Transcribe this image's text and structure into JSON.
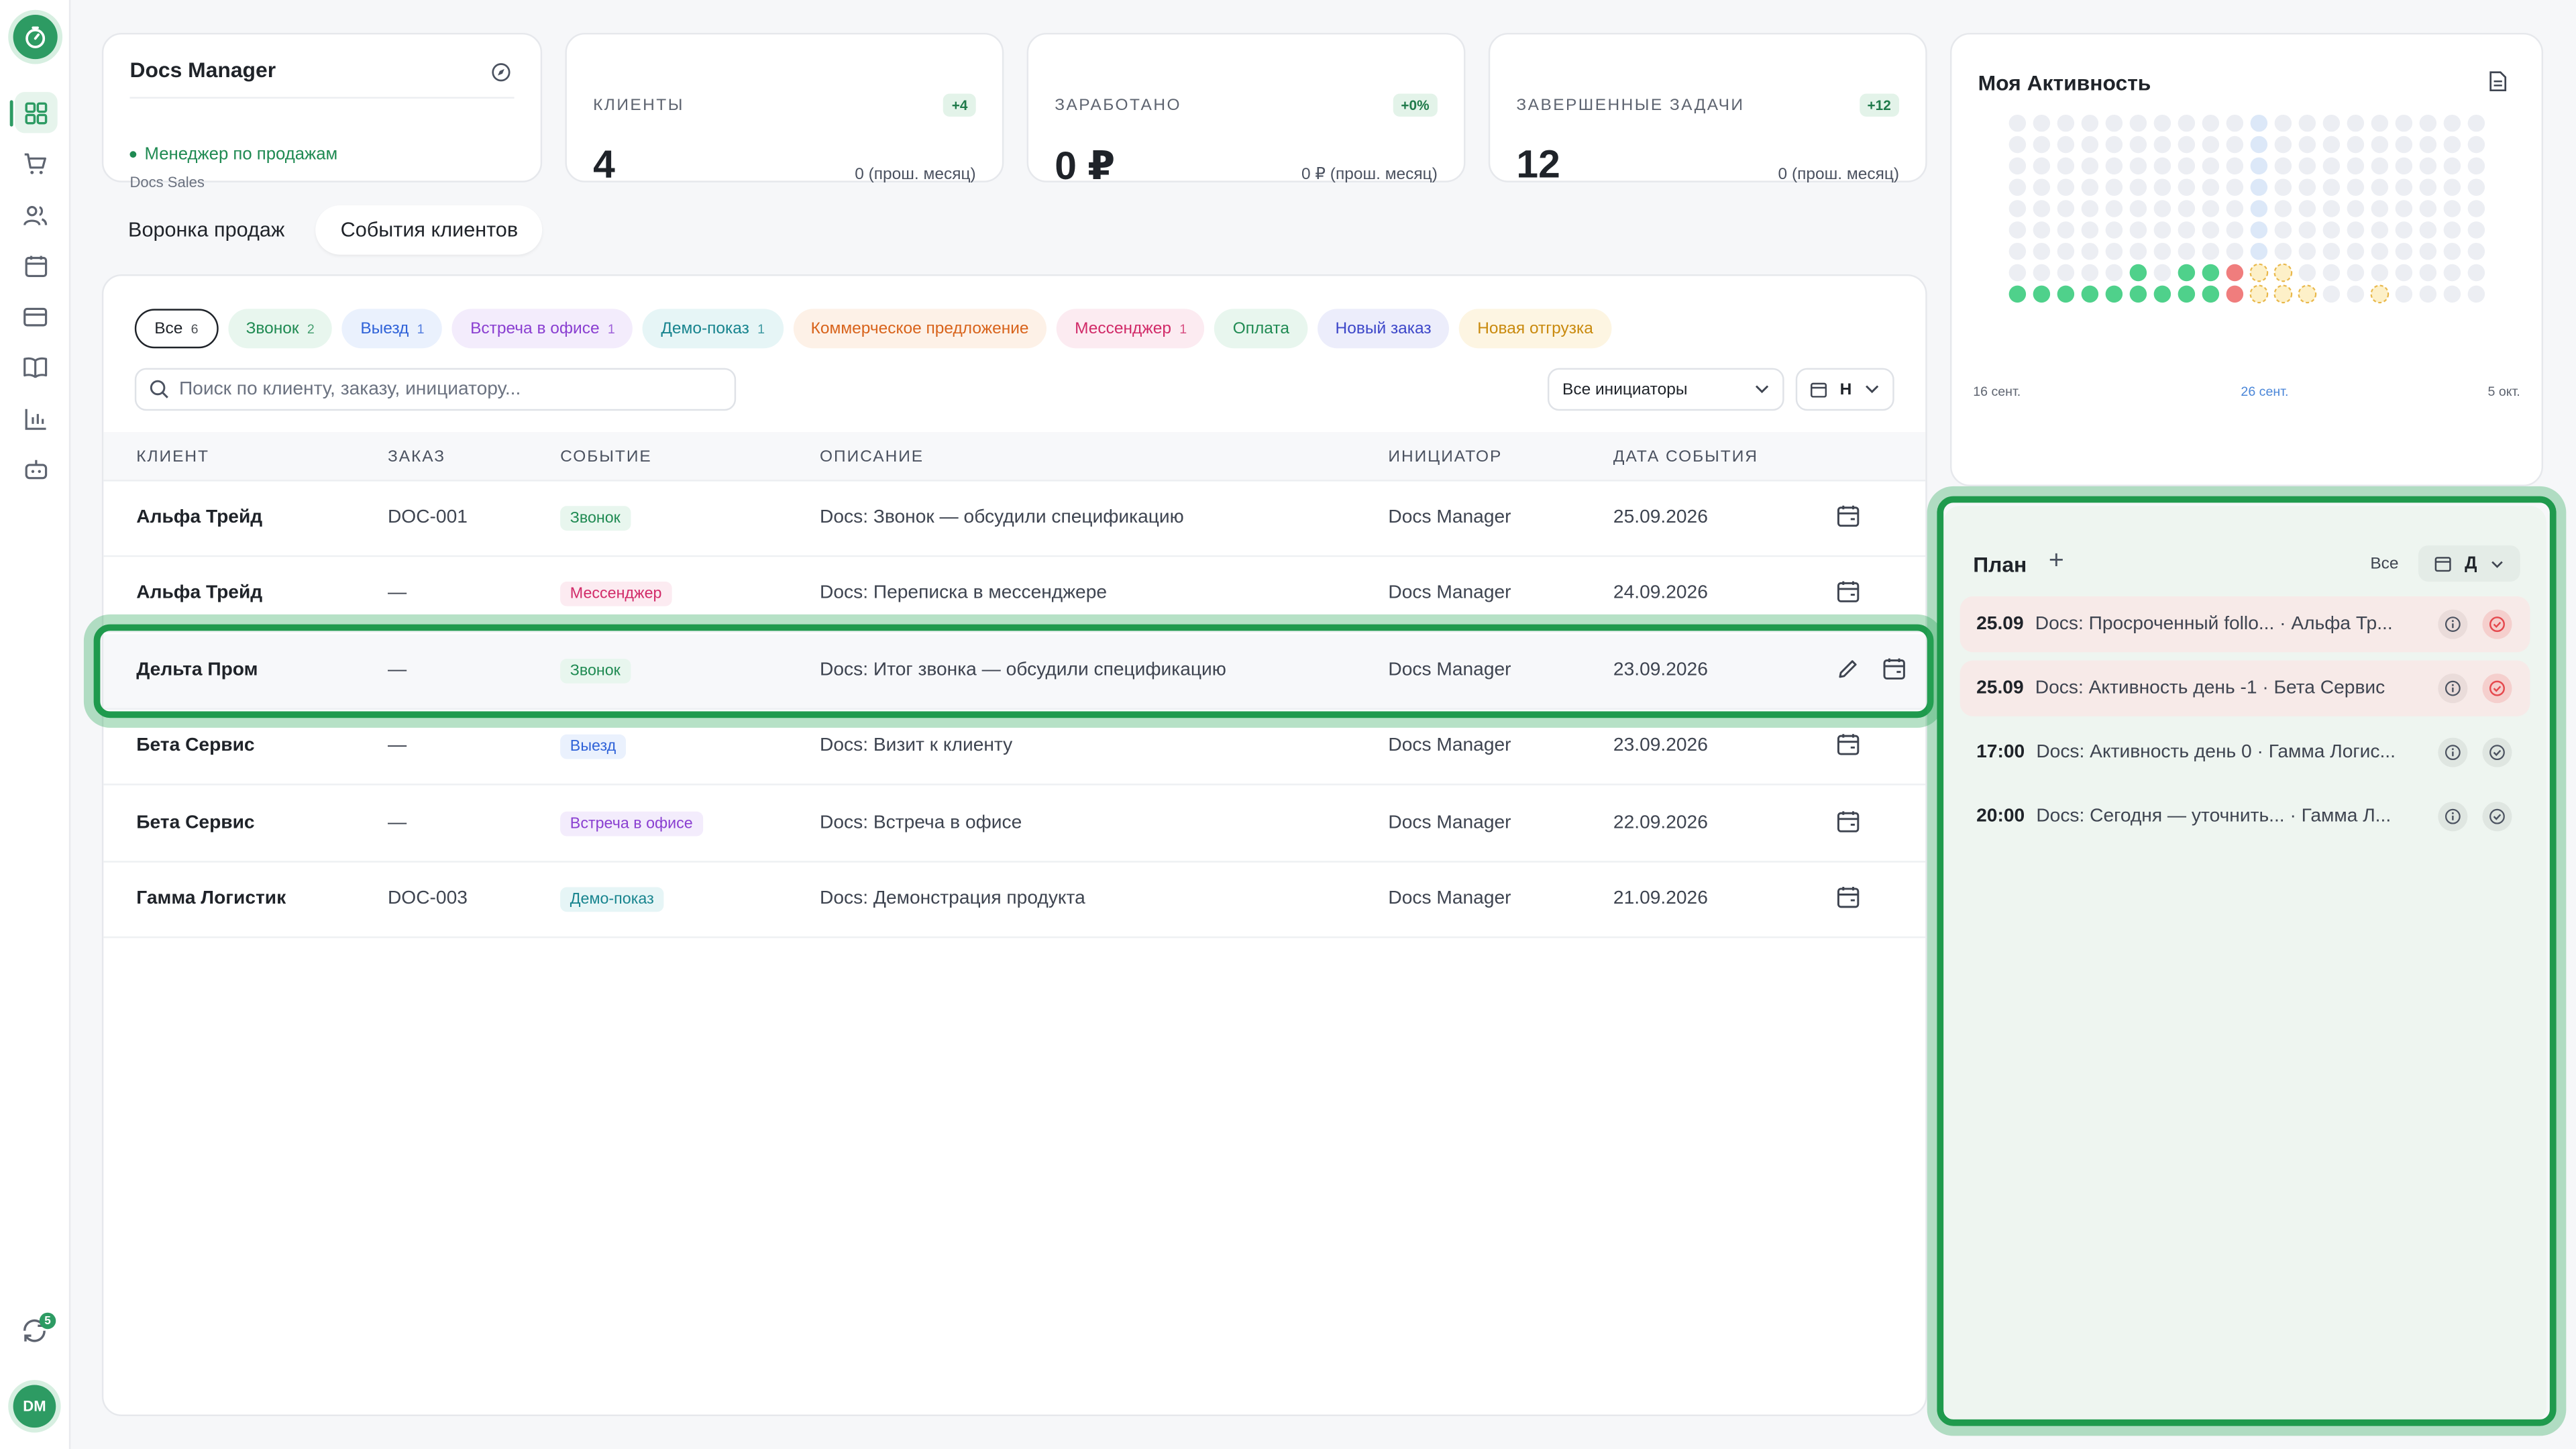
{
  "profile": {
    "name": "Docs Manager",
    "role": "Менеджер по продажам",
    "company": "Docs Sales"
  },
  "stats": [
    {
      "label": "КЛИЕНТЫ",
      "badge": "+4",
      "value": "4",
      "note": "0 (прош. месяц)"
    },
    {
      "label": "ЗАРАБОТАНО",
      "badge": "+0%",
      "value": "0 ₽",
      "note": "0 ₽ (прош. месяц)"
    },
    {
      "label": "ЗАВЕРШЕННЫЕ ЗАДАЧИ",
      "badge": "+12",
      "value": "12",
      "note": "0 (прош. месяц)"
    }
  ],
  "tabs": [
    "Воронка продаж",
    "События клиентов"
  ],
  "filters": [
    {
      "label": "Все",
      "count": "6"
    },
    {
      "label": "Звонок",
      "count": "2"
    },
    {
      "label": "Выезд",
      "count": "1"
    },
    {
      "label": "Встреча в офисе",
      "count": "1"
    },
    {
      "label": "Демо-показ",
      "count": "1"
    },
    {
      "label": "Коммерческое предложение",
      "count": ""
    },
    {
      "label": "Мессенджер",
      "count": "1"
    },
    {
      "label": "Оплата",
      "count": ""
    },
    {
      "label": "Новый заказ",
      "count": ""
    },
    {
      "label": "Новая отгрузка",
      "count": ""
    }
  ],
  "search": {
    "placeholder": "Поиск по клиенту, заказу, инициатору..."
  },
  "initiator_select": "Все инициаторы",
  "period_select": "Н",
  "table": {
    "headers": [
      "КЛИЕНТ",
      "ЗАКАЗ",
      "СОБЫТИЕ",
      "ОПИСАНИЕ",
      "ИНИЦИАТОР",
      "ДАТА СОБЫТИЯ"
    ],
    "rows": [
      {
        "client": "Альфа Трейд",
        "order": "DOC-001",
        "event": "Звонок",
        "desc": "Docs: Звонок — обсудили спецификацию",
        "initiator": "Docs Manager",
        "date": "25.09.2026"
      },
      {
        "client": "Альфа Трейд",
        "order": "—",
        "event": "Мессенджер",
        "desc": "Docs: Переписка в мессенджере",
        "initiator": "Docs Manager",
        "date": "24.09.2026"
      },
      {
        "client": "Дельта Пром",
        "order": "—",
        "event": "Звонок",
        "desc": "Docs: Итог звонка — обсудили спецификацию",
        "initiator": "Docs Manager",
        "date": "23.09.2026"
      },
      {
        "client": "Бета Сервис",
        "order": "—",
        "event": "Выезд",
        "desc": "Docs: Визит к клиенту",
        "initiator": "Docs Manager",
        "date": "23.09.2026"
      },
      {
        "client": "Бета Сервис",
        "order": "—",
        "event": "Встреча в офисе",
        "desc": "Docs: Встреча в офисе",
        "initiator": "Docs Manager",
        "date": "22.09.2026"
      },
      {
        "client": "Гамма Логистик",
        "order": "DOC-003",
        "event": "Демо-показ",
        "desc": "Docs: Демонстрация продукта",
        "initiator": "Docs Manager",
        "date": "21.09.2026"
      }
    ]
  },
  "activity": {
    "title": "Моя Активность",
    "dates": [
      "16 сент.",
      "26 сент.",
      "5 окт."
    ]
  },
  "plan": {
    "title": "План",
    "filter": "Все",
    "period": "Д",
    "items": [
      {
        "time": "25.09",
        "text": "Docs: Просроченный follo... · Альфа Тр...",
        "overdue": true
      },
      {
        "time": "25.09",
        "text": "Docs: Активность день -1 · Бета Сервис",
        "overdue": true
      },
      {
        "time": "17:00",
        "text": "Docs: Активность день 0 · Гамма Логис...",
        "overdue": false
      },
      {
        "time": "20:00",
        "text": "Docs: Сегодня — уточнить... · Гамма Л...",
        "overdue": false
      }
    ]
  },
  "sync_count": "5",
  "avatar_initials": "DM",
  "colors": {
    "accent": "#2d9b63",
    "danger": "#e5484d"
  }
}
